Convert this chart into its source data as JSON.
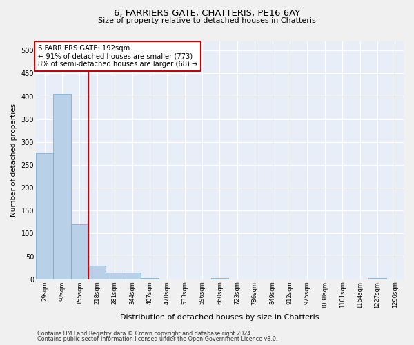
{
  "title1": "6, FARRIERS GATE, CHATTERIS, PE16 6AY",
  "title2": "Size of property relative to detached houses in Chatteris",
  "xlabel": "Distribution of detached houses by size in Chatteris",
  "ylabel": "Number of detached properties",
  "categories": [
    "29sqm",
    "92sqm",
    "155sqm",
    "218sqm",
    "281sqm",
    "344sqm",
    "407sqm",
    "470sqm",
    "533sqm",
    "596sqm",
    "660sqm",
    "723sqm",
    "786sqm",
    "849sqm",
    "912sqm",
    "975sqm",
    "1038sqm",
    "1101sqm",
    "1164sqm",
    "1227sqm",
    "1290sqm"
  ],
  "values": [
    275,
    405,
    120,
    30,
    15,
    15,
    3,
    0,
    0,
    0,
    3,
    0,
    0,
    0,
    0,
    0,
    0,
    0,
    0,
    3,
    0
  ],
  "bar_color": "#b8d0e8",
  "bar_edge_color": "#6aaad4",
  "bg_color": "#e8eef8",
  "grid_color": "#ffffff",
  "vline_x": 2.5,
  "vline_color": "#cc0000",
  "annotation_text": "6 FARRIERS GATE: 192sqm\n← 91% of detached houses are smaller (773)\n8% of semi-detached houses are larger (68) →",
  "annotation_box_color": "#ffffff",
  "annotation_box_edge": "#cc0000",
  "footer1": "Contains HM Land Registry data © Crown copyright and database right 2024.",
  "footer2": "Contains public sector information licensed under the Open Government Licence v3.0.",
  "ylim": [
    0,
    520
  ],
  "yticks": [
    0,
    50,
    100,
    150,
    200,
    250,
    300,
    350,
    400,
    450,
    500
  ],
  "title1_fontsize": 9.5,
  "title2_fontsize": 8.0,
  "ylabel_fontsize": 7.5,
  "xlabel_fontsize": 8.0
}
